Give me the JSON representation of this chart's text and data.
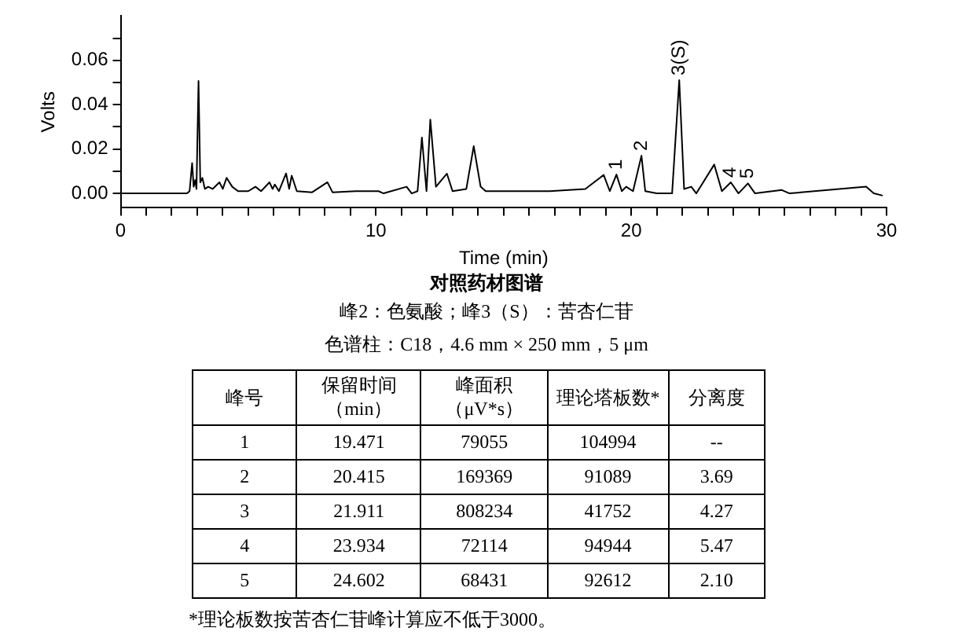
{
  "chart_data": {
    "type": "line",
    "title": "对照药材图谱",
    "subtitle": "峰2：色氨酸；峰3（S）：苦杏仁苷",
    "xlabel": "Time (min)",
    "ylabel": "Volts",
    "x": [
      0,
      2.6,
      2.7,
      2.8,
      2.86,
      2.92,
      2.97,
      3.05,
      3.12,
      3.2,
      3.3,
      3.43,
      3.6,
      3.87,
      4.0,
      4.15,
      4.37,
      4.6,
      5.0,
      5.28,
      5.5,
      5.83,
      5.95,
      6.04,
      6.2,
      6.48,
      6.6,
      6.7,
      6.9,
      7.5,
      8.1,
      8.3,
      9.2,
      10.1,
      10.3,
      11.2,
      11.4,
      11.63,
      11.8,
      11.98,
      12.13,
      12.35,
      12.78,
      13.0,
      13.54,
      13.83,
      14.1,
      14.3,
      16.8,
      18.2,
      18.92,
      19.16,
      19.42,
      19.63,
      19.8,
      20.07,
      20.4,
      20.55,
      21.0,
      21.6,
      21.88,
      22.07,
      22.35,
      22.55,
      23.25,
      23.55,
      23.9,
      24.2,
      24.57,
      24.85,
      25.9,
      26.2,
      29.2,
      29.5,
      29.85
    ],
    "series": [
      {
        "color": "#000000",
        "values": [
          0,
          0,
          0.001,
          0.0137,
          0.003,
          0.006,
          0.002,
          0.0507,
          0.005,
          0.007,
          0.002,
          0.003,
          0.002,
          0.005,
          0.002,
          0.007,
          0.003,
          0.001,
          0.001,
          0.003,
          0.001,
          0.005,
          0.002,
          0.004,
          0.001,
          0.009,
          0.002,
          0.008,
          0.001,
          0.0005,
          0.005,
          0.0005,
          0.001,
          0.001,
          0,
          0.003,
          0,
          0.001,
          0.0252,
          0.001,
          0.0333,
          0.003,
          0.0089,
          0.001,
          0.002,
          0.0213,
          0.003,
          0.001,
          0.001,
          0.002,
          0.0083,
          0.001,
          0.0085,
          0.001,
          0.003,
          0.001,
          0.017,
          0.001,
          0,
          0,
          0.0511,
          0.002,
          0.003,
          0,
          0.013,
          0.001,
          0.005,
          0,
          0.0045,
          0,
          0.0015,
          0,
          0.003,
          0,
          -0.001
        ]
      }
    ],
    "xlim": [
      0,
      30
    ],
    "xticks": [
      0,
      {
        "value": 1,
        "label": null
      },
      {
        "value": 2,
        "label": null
      },
      {
        "value": 3,
        "label": null
      },
      {
        "value": 4,
        "label": null
      },
      {
        "value": 5,
        "label": null
      },
      {
        "value": 6,
        "label": null
      },
      {
        "value": 7,
        "label": null
      },
      {
        "value": 8,
        "label": null
      },
      {
        "value": 9,
        "label": null
      },
      10,
      {
        "value": 11,
        "label": null
      },
      {
        "value": 12,
        "label": null
      },
      {
        "value": 13,
        "label": null
      },
      {
        "value": 14,
        "label": null
      },
      {
        "value": 15,
        "label": null
      },
      {
        "value": 16,
        "label": null
      },
      {
        "value": 17,
        "label": null
      },
      {
        "value": 18,
        "label": null
      },
      {
        "value": 19,
        "label": null
      },
      20,
      {
        "value": 21,
        "label": null
      },
      {
        "value": 22,
        "label": null
      },
      {
        "value": 23,
        "label": null
      },
      {
        "value": 24,
        "label": null
      },
      {
        "value": 25,
        "label": null
      },
      {
        "value": 26,
        "label": null
      },
      {
        "value": 27,
        "label": null
      },
      {
        "value": 28,
        "label": null
      },
      {
        "value": 29,
        "label": null
      },
      30
    ],
    "ylim": [
      -0.0065,
      0.08
    ],
    "yticks": [
      {
        "value": 0,
        "label": "0.00"
      },
      {
        "value": 0.01,
        "label": null
      },
      {
        "value": 0.02,
        "label": "0.02"
      },
      {
        "value": 0.03,
        "label": null
      },
      {
        "value": 0.04,
        "label": "0.04"
      },
      {
        "value": 0.05,
        "label": null
      },
      {
        "value": 0.06,
        "label": "0.06"
      },
      {
        "value": 0.07,
        "label": null
      }
    ],
    "grid": false,
    "marker": "none",
    "line_style": "solid",
    "annotations": [
      {
        "text": "1",
        "x": 19.42,
        "y": 0.0085
      },
      {
        "text": "2",
        "x": 20.4,
        "y": 0.017
      },
      {
        "text": "3(S)",
        "x": 21.88,
        "y": 0.0511
      },
      {
        "text": "4",
        "x": 23.9,
        "y": 0.005
      },
      {
        "text": "5",
        "x": 24.57,
        "y": 0.0045
      },
      "色谱柱：C18，4.6 mm × 250 mm，5 μm",
      "峰号",
      "保留时间（min）",
      "峰面积（μV*s）",
      "理论塔板数*",
      "分离度",
      "1",
      "19.471",
      "79055",
      "104994",
      "--",
      "2",
      "20.415",
      "169369",
      "91089",
      "3.69",
      "3",
      "21.911",
      "808234",
      "41752",
      "4.27",
      "4",
      "23.934",
      "72114",
      "94944",
      "5.47",
      "5",
      "24.602",
      "68431",
      "92612",
      "2.10",
      "*理论板数按苦杏仁苷峰计算应不低于3000。"
    ]
  }
}
